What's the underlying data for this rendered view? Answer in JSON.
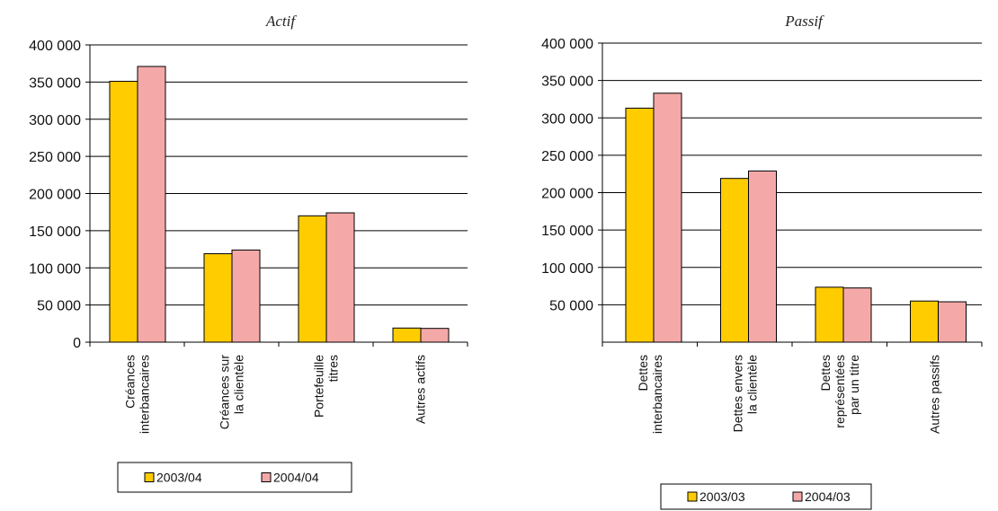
{
  "chart_data": [
    {
      "type": "bar",
      "title": "Actif",
      "ylim": [
        0,
        400000
      ],
      "yticks": [
        0,
        50000,
        100000,
        150000,
        200000,
        250000,
        300000,
        350000,
        400000
      ],
      "ytick_labels": [
        "0",
        "50 000",
        "100 000",
        "150 000",
        "200 000",
        "250 000",
        "300 000",
        "350 000",
        "400 000"
      ],
      "grid": true,
      "categories": [
        [
          "Créances",
          "interbancaires"
        ],
        [
          "Créances sur",
          "la clientèle"
        ],
        [
          "Portefeuille",
          "titres"
        ],
        [
          "Autres actifs"
        ]
      ],
      "series": [
        {
          "name": "2003/04",
          "color": "#FFCC00",
          "values": [
            351000,
            119000,
            170000,
            19000
          ]
        },
        {
          "name": "2004/04",
          "color": "#F4A9A8",
          "values": [
            371000,
            124000,
            174000,
            18500
          ]
        }
      ],
      "legend_position": "bottom"
    },
    {
      "type": "bar",
      "title": "Passif",
      "ylim": [
        0,
        400000
      ],
      "yticks": [
        50000,
        100000,
        150000,
        200000,
        250000,
        300000,
        350000,
        400000
      ],
      "ytick_labels": [
        "50 000",
        "100 000",
        "150 000",
        "200 000",
        "250 000",
        "300 000",
        "350 000",
        "400 000"
      ],
      "grid": true,
      "categories": [
        [
          "Dettes",
          "interbancaires"
        ],
        [
          "Dettes envers",
          "la clientèle"
        ],
        [
          "Dettes",
          "représentées",
          "par un titre"
        ],
        [
          "Autres passifs"
        ]
      ],
      "series": [
        {
          "name": "2003/03",
          "color": "#FFCC00",
          "values": [
            313000,
            219000,
            73500,
            55000
          ]
        },
        {
          "name": "2004/03",
          "color": "#F4A9A8",
          "values": [
            333000,
            229000,
            72500,
            54000
          ]
        }
      ],
      "legend_position": "bottom"
    }
  ]
}
